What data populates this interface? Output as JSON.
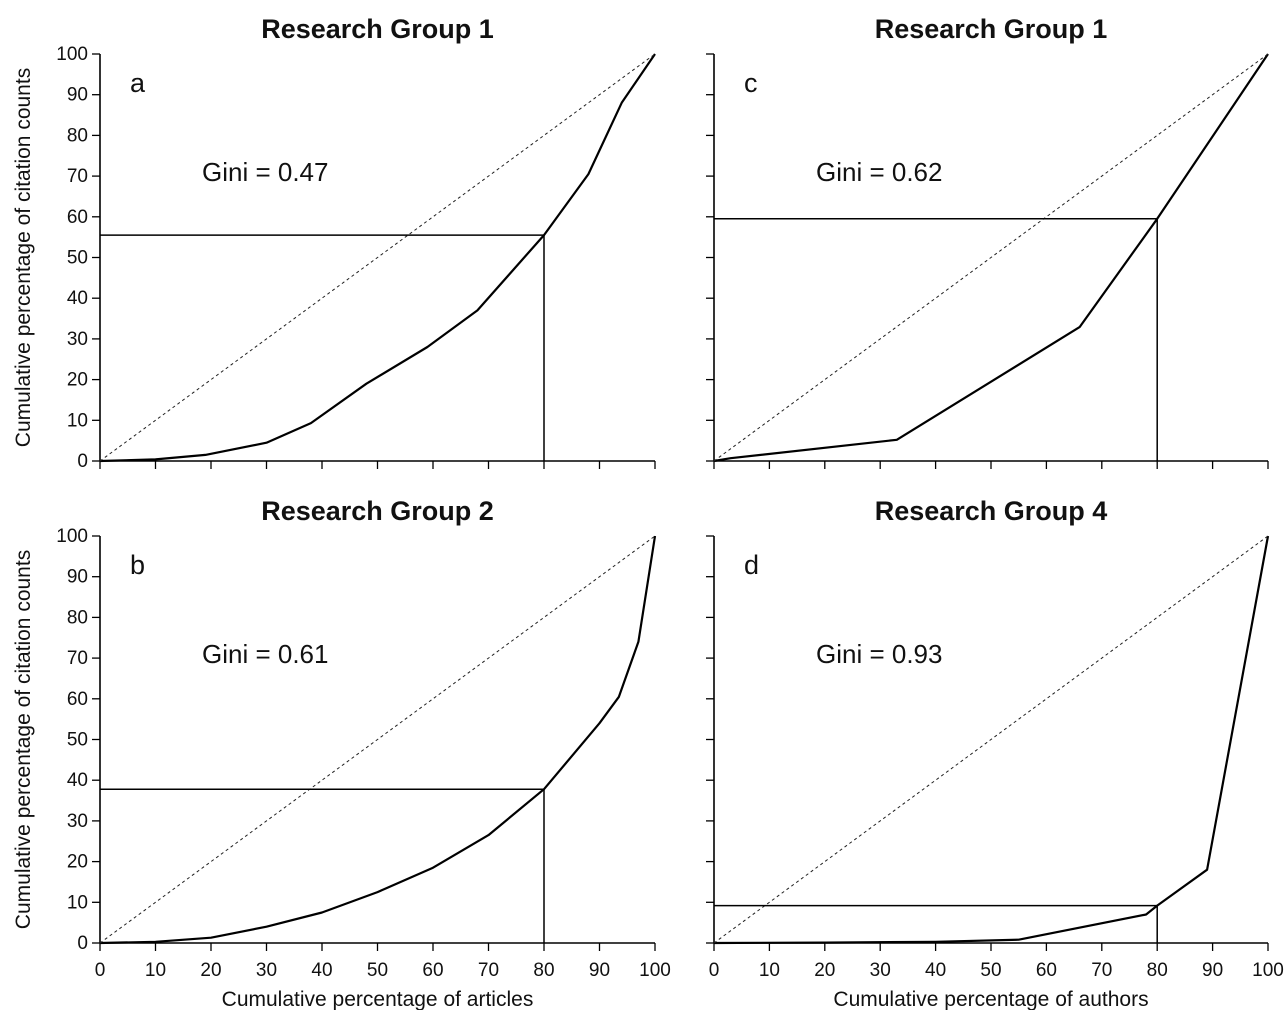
{
  "chart_data": [
    {
      "type": "line",
      "panel": "a",
      "title": "Research Group 1",
      "annotation": "Gini = 0.47",
      "xlabel": "",
      "ylabel": "Cumulative percentage of citation counts",
      "xlim": [
        0,
        100
      ],
      "ylim": [
        0,
        100
      ],
      "xticks": [],
      "yticks": [
        0,
        10,
        20,
        30,
        40,
        50,
        60,
        70,
        80,
        90,
        100
      ],
      "series": [
        {
          "kind": "lorenz",
          "x": [
            0,
            10,
            19,
            30,
            38,
            48,
            59,
            68,
            80,
            88,
            94,
            100
          ],
          "y": [
            0,
            0.4,
            1.5,
            4.5,
            9.3,
            19,
            28,
            37,
            55.5,
            70.5,
            88,
            100
          ]
        },
        {
          "kind": "equality",
          "x": [
            0,
            100
          ],
          "y": [
            0,
            100
          ]
        },
        {
          "kind": "marker",
          "x": [
            0,
            80,
            80
          ],
          "y": [
            55.5,
            55.5,
            0
          ]
        }
      ]
    },
    {
      "type": "line",
      "panel": "c",
      "title": "Research Group 1",
      "annotation": "Gini = 0.62",
      "xlabel": "",
      "ylabel": "",
      "xlim": [
        0,
        100
      ],
      "ylim": [
        0,
        100
      ],
      "xticks": [],
      "yticks": [],
      "series": [
        {
          "kind": "lorenz",
          "x": [
            0,
            3,
            33,
            66,
            80,
            100
          ],
          "y": [
            0,
            0.7,
            5.2,
            32.9,
            59.5,
            100
          ]
        },
        {
          "kind": "equality",
          "x": [
            0,
            100
          ],
          "y": [
            0,
            100
          ]
        },
        {
          "kind": "marker",
          "x": [
            0,
            80,
            80
          ],
          "y": [
            59.5,
            59.5,
            0
          ]
        }
      ]
    },
    {
      "type": "line",
      "panel": "b",
      "title": "Research Group 2",
      "annotation": "Gini = 0.61",
      "xlabel": "Cumulative percentage of articles",
      "ylabel": "Cumulative percentage of citation counts",
      "xlim": [
        0,
        100
      ],
      "ylim": [
        0,
        100
      ],
      "xticks": [
        0,
        10,
        20,
        30,
        40,
        50,
        60,
        70,
        80,
        90,
        100
      ],
      "yticks": [
        0,
        10,
        20,
        30,
        40,
        50,
        60,
        70,
        80,
        90,
        100
      ],
      "series": [
        {
          "kind": "lorenz",
          "x": [
            0,
            10,
            20,
            30,
            40,
            50,
            60,
            70,
            80,
            90,
            93.5,
            97,
            100
          ],
          "y": [
            0,
            0.3,
            1.3,
            4,
            7.5,
            12.5,
            18.5,
            26.5,
            37.8,
            54,
            60.5,
            74,
            100
          ]
        },
        {
          "kind": "equality",
          "x": [
            0,
            100
          ],
          "y": [
            0,
            100
          ]
        },
        {
          "kind": "marker",
          "x": [
            0,
            80,
            80
          ],
          "y": [
            37.8,
            37.8,
            0
          ]
        }
      ]
    },
    {
      "type": "line",
      "panel": "d",
      "title": "Research Group 4",
      "annotation": "Gini = 0.93",
      "xlabel": "Cumulative percentage of authors",
      "ylabel": "",
      "xlim": [
        0,
        100
      ],
      "ylim": [
        0,
        100
      ],
      "xticks": [
        0,
        10,
        20,
        30,
        40,
        50,
        60,
        70,
        80,
        90,
        100
      ],
      "yticks": [],
      "series": [
        {
          "kind": "lorenz",
          "x": [
            0,
            20,
            40,
            55,
            78,
            80,
            89,
            100
          ],
          "y": [
            0,
            0.1,
            0.3,
            0.8,
            7,
            9.2,
            18,
            100
          ]
        },
        {
          "kind": "equality",
          "x": [
            0,
            100
          ],
          "y": [
            0,
            100
          ]
        },
        {
          "kind": "marker",
          "x": [
            0,
            80,
            80
          ],
          "y": [
            9.2,
            9.2,
            0
          ]
        }
      ]
    }
  ]
}
